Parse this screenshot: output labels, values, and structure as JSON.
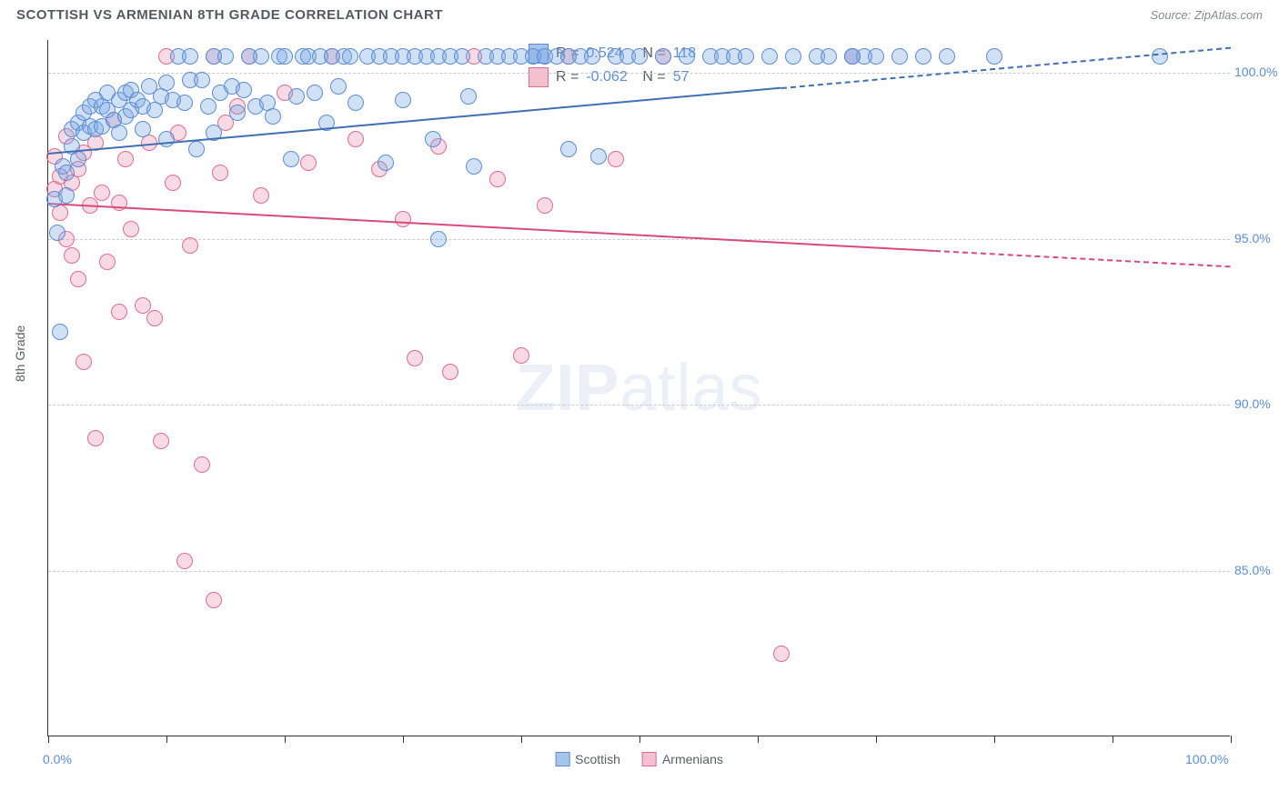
{
  "header": {
    "title": "SCOTTISH VS ARMENIAN 8TH GRADE CORRELATION CHART",
    "source": "Source: ZipAtlas.com"
  },
  "axes": {
    "y_label": "8th Grade",
    "x_min": 0,
    "x_max": 100,
    "y_min": 80,
    "y_max": 101,
    "y_ticks": [
      {
        "v": 100,
        "label": "100.0%"
      },
      {
        "v": 95,
        "label": "95.0%"
      },
      {
        "v": 90,
        "label": "90.0%"
      },
      {
        "v": 85,
        "label": "85.0%"
      }
    ],
    "x_ticks": [
      0,
      10,
      20,
      30,
      40,
      50,
      60,
      70,
      80,
      90,
      100
    ],
    "x_labels": [
      {
        "v": 0,
        "label": "0.0%"
      },
      {
        "v": 100,
        "label": "100.0%"
      }
    ]
  },
  "legend_top": {
    "rows": [
      {
        "color_fill": "#a7c4ea",
        "color_border": "#5b8dd6",
        "r_label": "R =",
        "r_val": "0.524",
        "n_label": "N =",
        "n_val": "118"
      },
      {
        "color_fill": "#f4c0cf",
        "color_border": "#e16b92",
        "r_label": "R =",
        "r_val": "-0.062",
        "n_label": "N =",
        "n_val": "57"
      }
    ]
  },
  "legend_bottom": {
    "items": [
      {
        "label": "Scottish",
        "fill": "#a7c4ea",
        "border": "#5b8dd6"
      },
      {
        "label": "Armenians",
        "fill": "#f4c0cf",
        "border": "#e16b92"
      }
    ]
  },
  "series": {
    "scottish": {
      "fill": "rgba(120,165,225,0.35)",
      "border": "#5b8dd6",
      "radius": 9,
      "trend": {
        "x0": 0,
        "y0": 97.6,
        "x1": 100,
        "y1": 100.8,
        "solid_until": 62,
        "color": "#3f6fb5"
      },
      "points": [
        [
          0.5,
          96.2
        ],
        [
          0.8,
          95.2
        ],
        [
          1,
          92.2
        ],
        [
          1.2,
          97.2
        ],
        [
          1.5,
          97.0
        ],
        [
          1.5,
          96.3
        ],
        [
          2,
          98.3
        ],
        [
          2,
          97.8
        ],
        [
          2.5,
          98.5
        ],
        [
          2.5,
          97.4
        ],
        [
          3,
          98.8
        ],
        [
          3,
          98.2
        ],
        [
          3.5,
          99.0
        ],
        [
          3.5,
          98.4
        ],
        [
          4,
          98.3
        ],
        [
          4,
          99.2
        ],
        [
          4.5,
          99.0
        ],
        [
          4.5,
          98.4
        ],
        [
          5,
          98.9
        ],
        [
          5,
          99.4
        ],
        [
          5.5,
          98.6
        ],
        [
          6,
          99.2
        ],
        [
          6,
          98.2
        ],
        [
          6.5,
          99.4
        ],
        [
          6.5,
          98.7
        ],
        [
          7,
          99.5
        ],
        [
          7,
          98.9
        ],
        [
          7.5,
          99.2
        ],
        [
          8,
          99.0
        ],
        [
          8,
          98.3
        ],
        [
          8.5,
          99.6
        ],
        [
          9,
          98.9
        ],
        [
          9.5,
          99.3
        ],
        [
          10,
          99.7
        ],
        [
          10,
          98.0
        ],
        [
          10.5,
          99.2
        ],
        [
          11,
          100.5
        ],
        [
          11.5,
          99.1
        ],
        [
          12,
          99.8
        ],
        [
          12,
          100.5
        ],
        [
          12.5,
          97.7
        ],
        [
          13,
          99.8
        ],
        [
          13.5,
          99.0
        ],
        [
          14,
          100.5
        ],
        [
          14,
          98.2
        ],
        [
          14.5,
          99.4
        ],
        [
          15,
          100.5
        ],
        [
          15.5,
          99.6
        ],
        [
          16,
          98.8
        ],
        [
          16.5,
          99.5
        ],
        [
          17,
          100.5
        ],
        [
          17.5,
          99.0
        ],
        [
          18,
          100.5
        ],
        [
          18.5,
          99.1
        ],
        [
          19,
          98.7
        ],
        [
          19.5,
          100.5
        ],
        [
          20,
          100.5
        ],
        [
          20.5,
          97.4
        ],
        [
          21,
          99.3
        ],
        [
          21.5,
          100.5
        ],
        [
          22,
          100.5
        ],
        [
          22.5,
          99.4
        ],
        [
          23,
          100.5
        ],
        [
          23.5,
          98.5
        ],
        [
          24,
          100.5
        ],
        [
          24.5,
          99.6
        ],
        [
          25,
          100.5
        ],
        [
          25.5,
          100.5
        ],
        [
          26,
          99.1
        ],
        [
          27,
          100.5
        ],
        [
          28,
          100.5
        ],
        [
          28.5,
          97.3
        ],
        [
          29,
          100.5
        ],
        [
          30,
          100.5
        ],
        [
          30,
          99.2
        ],
        [
          31,
          100.5
        ],
        [
          32,
          100.5
        ],
        [
          32.5,
          98.0
        ],
        [
          33,
          100.5
        ],
        [
          33,
          95.0
        ],
        [
          34,
          100.5
        ],
        [
          35,
          100.5
        ],
        [
          35.5,
          99.3
        ],
        [
          36,
          97.2
        ],
        [
          37,
          100.5
        ],
        [
          38,
          100.5
        ],
        [
          39,
          100.5
        ],
        [
          40,
          100.5
        ],
        [
          41,
          100.5
        ],
        [
          42,
          100.5
        ],
        [
          43,
          100.5
        ],
        [
          44,
          100.5
        ],
        [
          44,
          97.7
        ],
        [
          45,
          100.5
        ],
        [
          46,
          100.5
        ],
        [
          46.5,
          97.5
        ],
        [
          48,
          100.5
        ],
        [
          49,
          100.5
        ],
        [
          50,
          100.5
        ],
        [
          52,
          100.5
        ],
        [
          54,
          100.5
        ],
        [
          56,
          100.5
        ],
        [
          57,
          100.5
        ],
        [
          58,
          100.5
        ],
        [
          59,
          100.5
        ],
        [
          61,
          100.5
        ],
        [
          63,
          100.5
        ],
        [
          65,
          100.5
        ],
        [
          66,
          100.5
        ],
        [
          68,
          100.5
        ],
        [
          69,
          100.5
        ],
        [
          70,
          100.5
        ],
        [
          72,
          100.5
        ],
        [
          74,
          100.5
        ],
        [
          76,
          100.5
        ],
        [
          80,
          100.5
        ],
        [
          94,
          100.5
        ],
        [
          68,
          100.5
        ]
      ]
    },
    "armenian": {
      "fill": "rgba(235,150,180,0.35)",
      "border": "#e16b92",
      "radius": 9,
      "trend": {
        "x0": 0,
        "y0": 96.1,
        "x1": 100,
        "y1": 94.2,
        "solid_until": 75,
        "color": "#d94a7a"
      },
      "points": [
        [
          0.5,
          97.5
        ],
        [
          0.5,
          96.5
        ],
        [
          1,
          96.9
        ],
        [
          1,
          95.8
        ],
        [
          1.5,
          98.1
        ],
        [
          1.5,
          95.0
        ],
        [
          2,
          96.7
        ],
        [
          2,
          94.5
        ],
        [
          2.5,
          97.1
        ],
        [
          2.5,
          93.8
        ],
        [
          3,
          97.6
        ],
        [
          3,
          91.3
        ],
        [
          3.5,
          96.0
        ],
        [
          4,
          97.9
        ],
        [
          4,
          89.0
        ],
        [
          4.5,
          96.4
        ],
        [
          5,
          94.3
        ],
        [
          5.5,
          98.6
        ],
        [
          6,
          96.1
        ],
        [
          6,
          92.8
        ],
        [
          6.5,
          97.4
        ],
        [
          7,
          95.3
        ],
        [
          8,
          93.0
        ],
        [
          8.5,
          97.9
        ],
        [
          9,
          92.6
        ],
        [
          9.5,
          88.9
        ],
        [
          10,
          100.5
        ],
        [
          10.5,
          96.7
        ],
        [
          11,
          98.2
        ],
        [
          11.5,
          85.3
        ],
        [
          12,
          94.8
        ],
        [
          13,
          88.2
        ],
        [
          14,
          100.5
        ],
        [
          14,
          84.1
        ],
        [
          14.5,
          97.0
        ],
        [
          15,
          98.5
        ],
        [
          16,
          99.0
        ],
        [
          17,
          100.5
        ],
        [
          18,
          96.3
        ],
        [
          20,
          99.4
        ],
        [
          22,
          97.3
        ],
        [
          24,
          100.5
        ],
        [
          26,
          98.0
        ],
        [
          28,
          97.1
        ],
        [
          30,
          95.6
        ],
        [
          31,
          91.4
        ],
        [
          33,
          97.8
        ],
        [
          34,
          91.0
        ],
        [
          36,
          100.5
        ],
        [
          38,
          96.8
        ],
        [
          40,
          91.5
        ],
        [
          42,
          96.0
        ],
        [
          44,
          100.5
        ],
        [
          48,
          97.4
        ],
        [
          52,
          100.5
        ],
        [
          62,
          82.5
        ],
        [
          68,
          100.5
        ]
      ]
    }
  },
  "colors": {
    "grid": "#c9cbce",
    "axis_text": "#5b8dd6",
    "label_text": "#5a5e64"
  },
  "watermark": {
    "a": "ZIP",
    "b": "atlas"
  }
}
